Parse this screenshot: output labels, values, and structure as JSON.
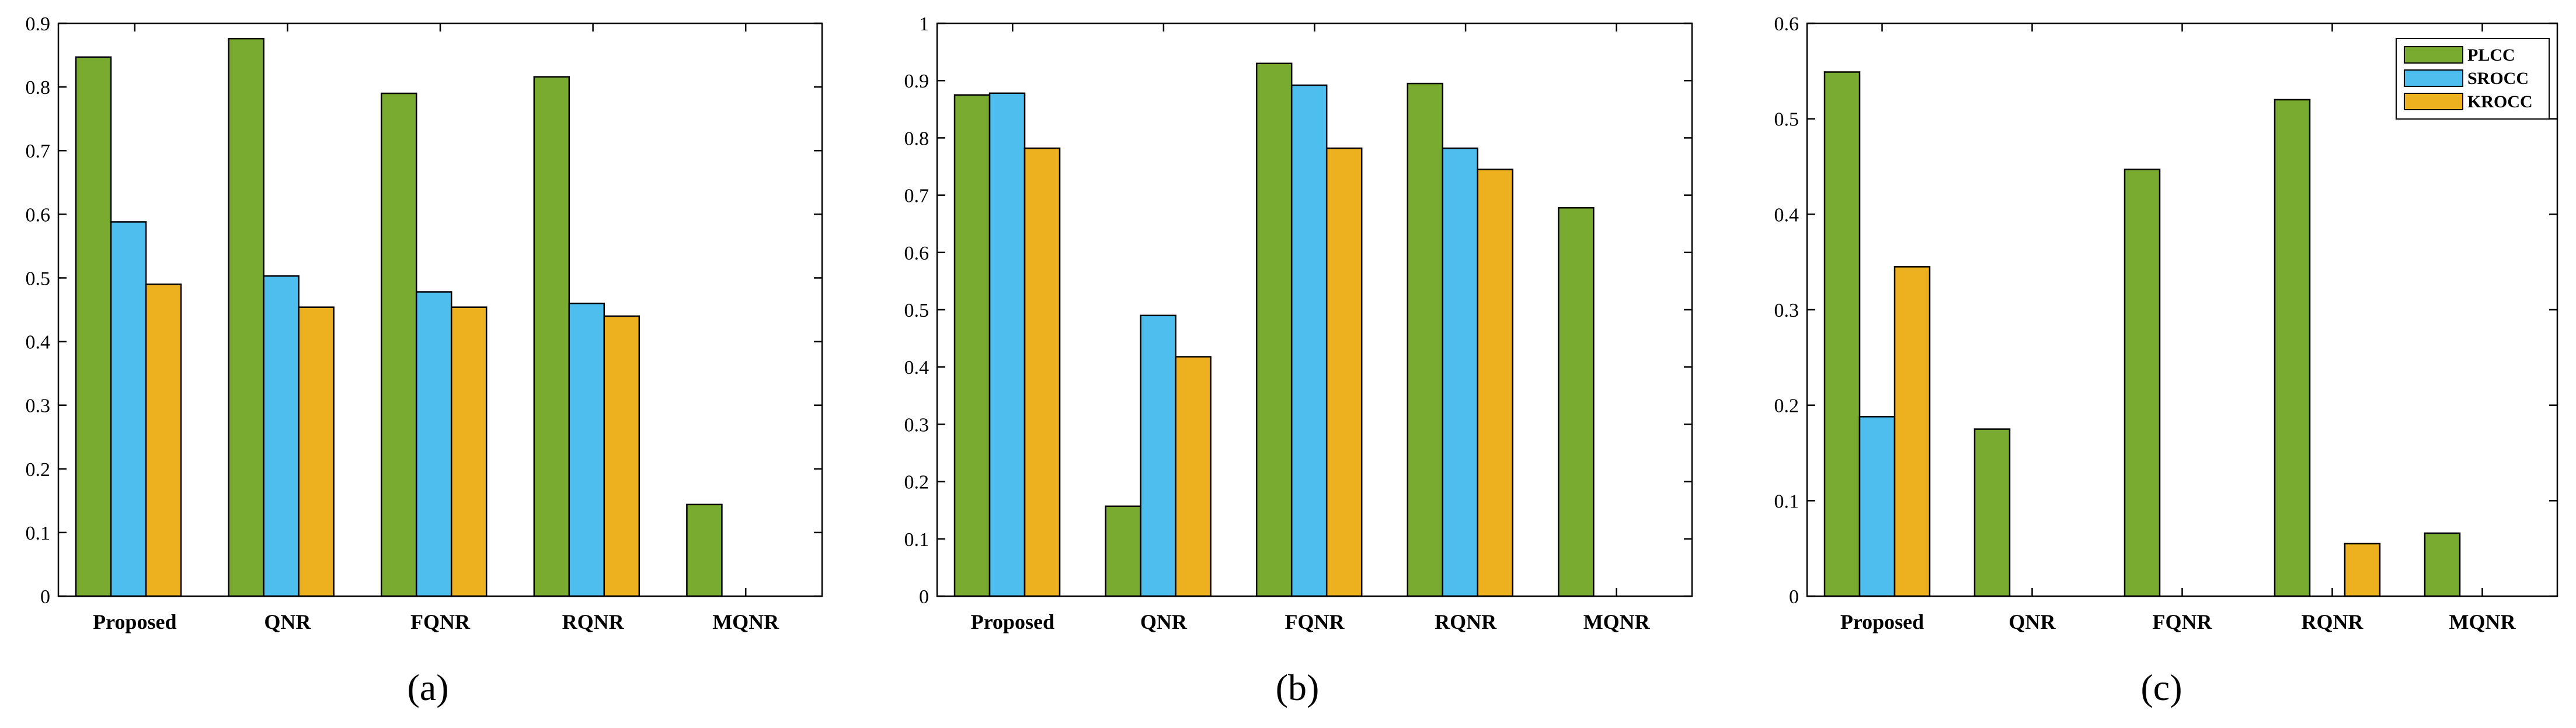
{
  "colors": {
    "PLCC": "#78ab30",
    "SROCC": "#4dbeee",
    "KROCC": "#edb120"
  },
  "chart_data": [
    {
      "type": "bar",
      "panel_label": "(a)",
      "categories": [
        "Proposed",
        "QNR",
        "FQNR",
        "RQNR",
        "MQNR"
      ],
      "ylim": [
        0,
        0.9
      ],
      "yticks": [
        "0",
        "0.1",
        "0.2",
        "0.3",
        "0.4",
        "0.5",
        "0.6",
        "0.7",
        "0.8",
        "0.9"
      ],
      "series": [
        {
          "name": "PLCC",
          "values": [
            0.847,
            0.876,
            0.79,
            0.816,
            0.144
          ]
        },
        {
          "name": "SROCC",
          "values": [
            0.588,
            0.503,
            0.478,
            0.46,
            0
          ]
        },
        {
          "name": "KROCC",
          "values": [
            0.49,
            0.454,
            0.454,
            0.44,
            0
          ]
        }
      ]
    },
    {
      "type": "bar",
      "panel_label": "(b)",
      "categories": [
        "Proposed",
        "QNR",
        "FQNR",
        "RQNR",
        "MQNR"
      ],
      "ylim": [
        0,
        1
      ],
      "yticks": [
        "0",
        "0.1",
        "0.2",
        "0.3",
        "0.4",
        "0.5",
        "0.6",
        "0.7",
        "0.8",
        "0.9",
        "1"
      ],
      "series": [
        {
          "name": "PLCC",
          "values": [
            0.875,
            0.157,
            0.93,
            0.895,
            0.678
          ]
        },
        {
          "name": "SROCC",
          "values": [
            0.878,
            0.49,
            0.892,
            0.782,
            0
          ]
        },
        {
          "name": "KROCC",
          "values": [
            0.782,
            0.418,
            0.782,
            0.745,
            0
          ]
        }
      ]
    },
    {
      "type": "bar",
      "panel_label": "(c)",
      "categories": [
        "Proposed",
        "QNR",
        "FQNR",
        "RQNR",
        "MQNR"
      ],
      "ylim": [
        0,
        0.6
      ],
      "yticks": [
        "0",
        "0.1",
        "0.2",
        "0.3",
        "0.4",
        "0.5",
        "0.6"
      ],
      "legend": [
        "PLCC",
        "SROCC",
        "KROCC"
      ],
      "legend_position": "top-right",
      "series": [
        {
          "name": "PLCC",
          "values": [
            0.549,
            0.175,
            0.447,
            0.52,
            0.066
          ]
        },
        {
          "name": "SROCC",
          "values": [
            0.188,
            0,
            0,
            0,
            0
          ]
        },
        {
          "name": "KROCC",
          "values": [
            0.345,
            0,
            0,
            0.055,
            0
          ]
        }
      ]
    }
  ]
}
